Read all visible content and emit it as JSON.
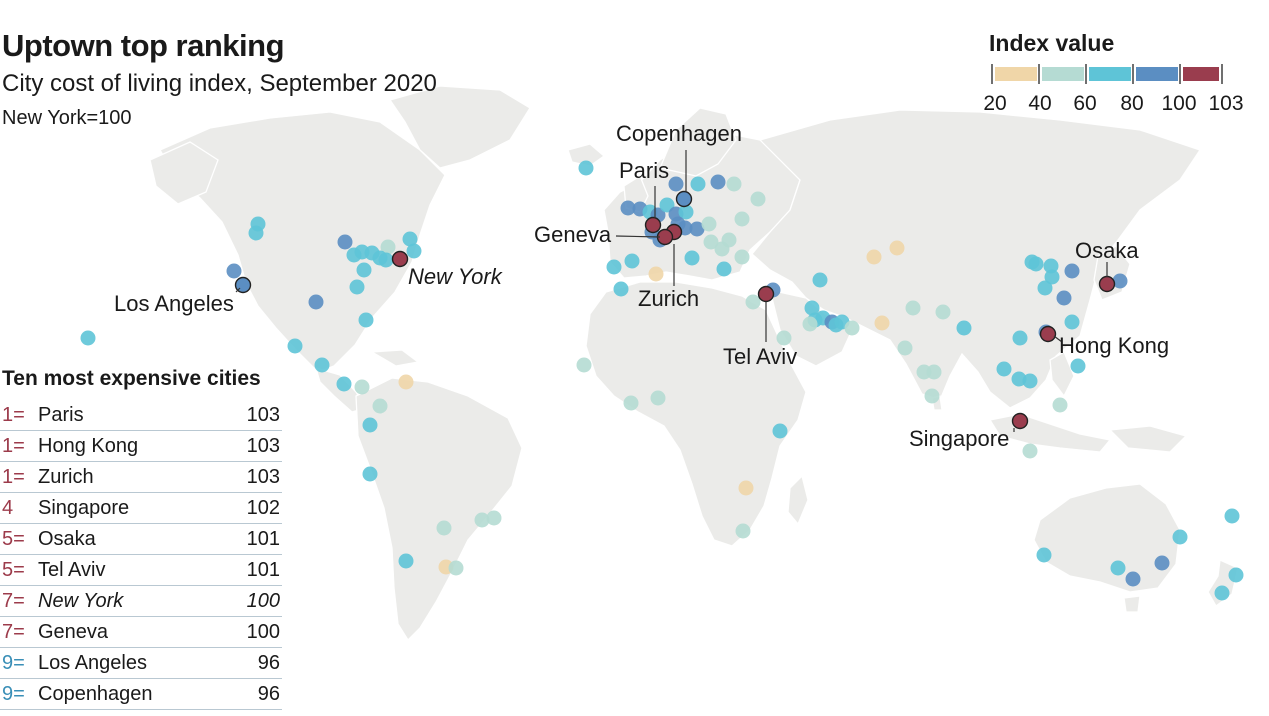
{
  "header": {
    "title": "Uptown top ranking",
    "subtitle": "City cost of living index, September 2020",
    "note": "New York=100"
  },
  "legend": {
    "title": "Index value",
    "ticks": [
      "20",
      "40",
      "60",
      "80",
      "100",
      "103"
    ],
    "bins": [
      {
        "from": 20,
        "to": 40,
        "color": "#f0d6a8"
      },
      {
        "from": 40,
        "to": 60,
        "color": "#b5dbd3"
      },
      {
        "from": 60,
        "to": 80,
        "color": "#5ec4d7"
      },
      {
        "from": 80,
        "to": 100,
        "color": "#5b8ec2"
      },
      {
        "from": 100,
        "to": 103,
        "color": "#9a3d4e"
      }
    ]
  },
  "table": {
    "title": "Ten most expensive cities",
    "rows": [
      {
        "rank": "1=",
        "city": "Paris",
        "value": "103",
        "rank_color": "red"
      },
      {
        "rank": "1=",
        "city": "Hong Kong",
        "value": "103",
        "rank_color": "red"
      },
      {
        "rank": "1=",
        "city": "Zurich",
        "value": "103",
        "rank_color": "red"
      },
      {
        "rank": "4",
        "city": "Singapore",
        "value": "102",
        "rank_color": "red"
      },
      {
        "rank": "5=",
        "city": "Osaka",
        "value": "101",
        "rank_color": "red"
      },
      {
        "rank": "5=",
        "city": "Tel Aviv",
        "value": "101",
        "rank_color": "red"
      },
      {
        "rank": "7=",
        "city": "New York",
        "value": "100",
        "rank_color": "red",
        "italic": true
      },
      {
        "rank": "7=",
        "city": "Geneva",
        "value": "100",
        "rank_color": "red"
      },
      {
        "rank": "9=",
        "city": "Los Angeles",
        "value": "96",
        "rank_color": "blue"
      },
      {
        "rank": "9=",
        "city": "Copenhagen",
        "value": "96",
        "rank_color": "blue"
      }
    ]
  },
  "map_labels": {
    "copenhagen": "Copenhagen",
    "paris": "Paris",
    "geneva": "Geneva",
    "zurich": "Zurich",
    "tel_aviv": "Tel Aviv",
    "osaka": "Osaka",
    "hong_kong": "Hong Kong",
    "singapore": "Singapore",
    "los_angeles": "Los Angeles",
    "new_york": "New York"
  },
  "chart_data": {
    "type": "scatter",
    "title": "Uptown top ranking",
    "subtitle": "City cost of living index, September 2020",
    "note": "New York=100",
    "series": [
      {
        "name": "Paris",
        "values": [
          103
        ]
      },
      {
        "name": "Hong Kong",
        "values": [
          103
        ]
      },
      {
        "name": "Zurich",
        "values": [
          103
        ]
      },
      {
        "name": "Singapore",
        "values": [
          102
        ]
      },
      {
        "name": "Osaka",
        "values": [
          101
        ]
      },
      {
        "name": "Tel Aviv",
        "values": [
          101
        ]
      },
      {
        "name": "New York",
        "values": [
          100
        ]
      },
      {
        "name": "Geneva",
        "values": [
          100
        ]
      },
      {
        "name": "Los Angeles",
        "values": [
          96
        ]
      },
      {
        "name": "Copenhagen",
        "values": [
          96
        ]
      }
    ],
    "unlabeled_city_bins": [
      "#5ec4d7",
      "#b5dbd3",
      "#f0d6a8",
      "#5b8ec2"
    ],
    "legend_position": "top-right"
  }
}
